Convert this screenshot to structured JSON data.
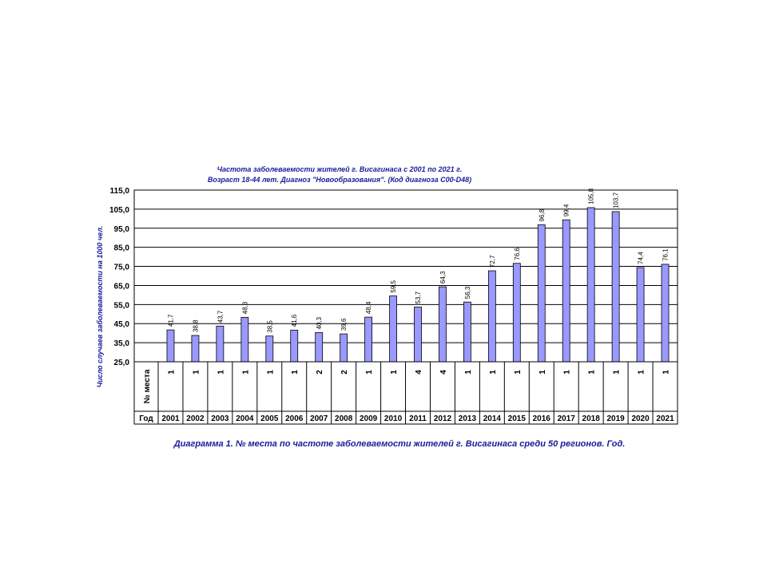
{
  "chart_data": {
    "type": "bar",
    "title_line1": "Частота заболеваемости жителей г. Висагинаса с 2001 по 2021 г.",
    "title_line2": "Возраст 18-44 лет. Диагноз \"Новообразования\". (Код диагноза C00-D48)",
    "ylabel": "Число случаев заболеваемости на 1000 чел.",
    "ylim": [
      25,
      115
    ],
    "yticks": [
      "25,0",
      "35,0",
      "45,0",
      "55,0",
      "65,0",
      "75,0",
      "85,0",
      "95,0",
      "105,0",
      "115,0"
    ],
    "grid": true,
    "bar_color": "#9999ff",
    "categories": [
      "2001",
      "2002",
      "2003",
      "2004",
      "2005",
      "2006",
      "2007",
      "2008",
      "2009",
      "2010",
      "2011",
      "2012",
      "2013",
      "2014",
      "2015",
      "2016",
      "2017",
      "2018",
      "2019",
      "2020",
      "2021"
    ],
    "values": [
      41.7,
      38.8,
      43.7,
      48.3,
      38.5,
      41.6,
      40.3,
      39.6,
      48.4,
      59.5,
      53.7,
      64.3,
      56.3,
      72.7,
      76.6,
      96.8,
      99.4,
      105.8,
      103.7,
      74.4,
      76.1
    ],
    "value_labels": [
      "41,7",
      "38,8",
      "43,7",
      "48,3",
      "38,5",
      "41,6",
      "40,3",
      "39,6",
      "48,4",
      "59,5",
      "53,7",
      "64,3",
      "56,3",
      "72,7",
      "76,6",
      "96,8",
      "99,4",
      "105,8",
      "103,7",
      "74,4",
      "76,1"
    ],
    "table": {
      "rank_header": "№ места",
      "year_header": "Год",
      "ranks": [
        "1",
        "1",
        "1",
        "1",
        "1",
        "1",
        "2",
        "2",
        "1",
        "1",
        "4",
        "4",
        "1",
        "1",
        "1",
        "1",
        "1",
        "1",
        "1",
        "1",
        "1"
      ]
    },
    "caption": "Диаграмма 1. № места по частоте заболеваемости жителей г. Висагинаса среди 50 регионов.  Год."
  }
}
